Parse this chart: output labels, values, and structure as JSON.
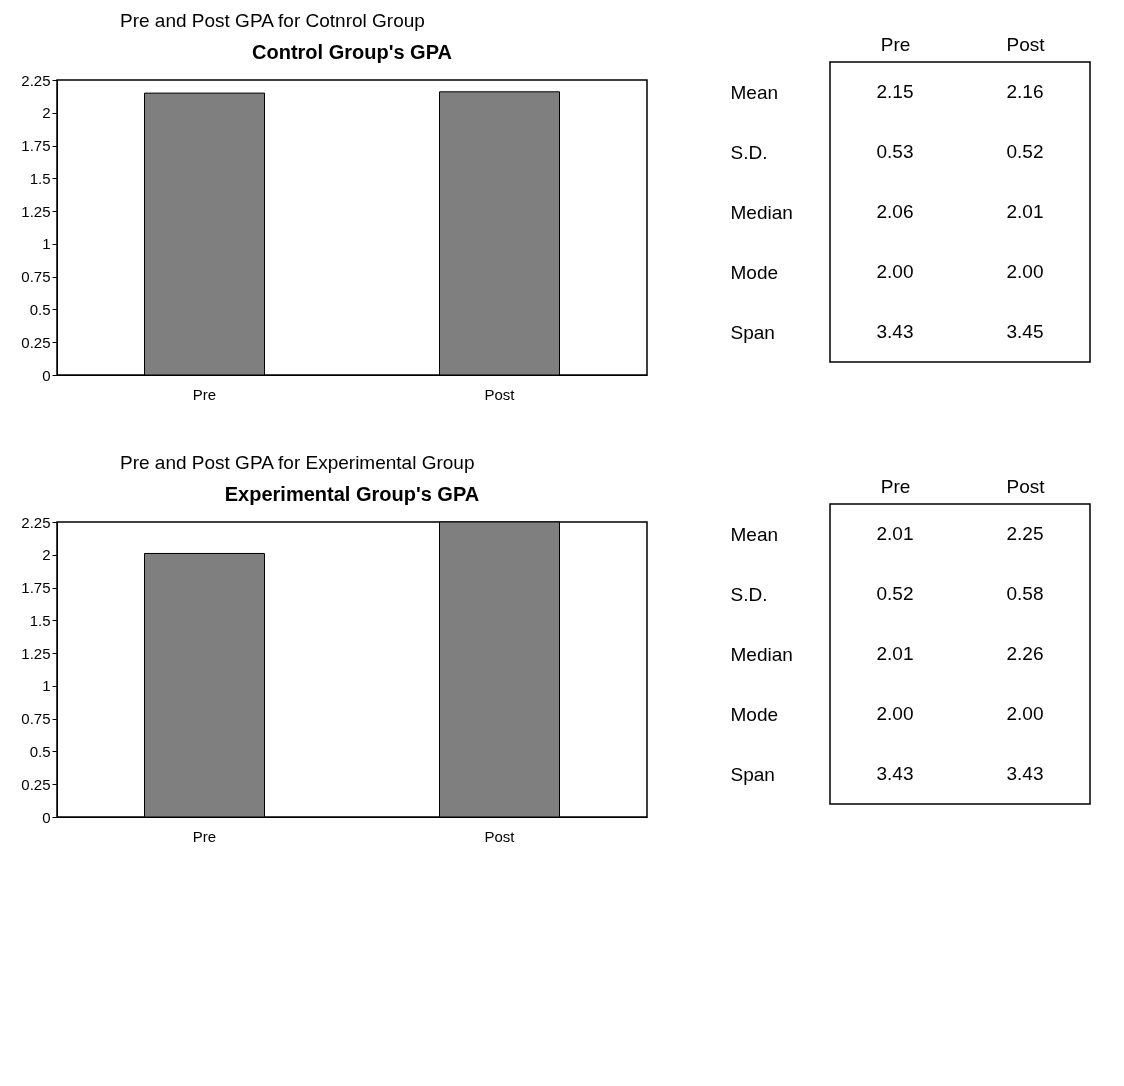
{
  "chart_data": [
    {
      "type": "bar",
      "title": "Control Group's GPA",
      "annotations": [
        "Pre and Post GPA for Cotnrol Group"
      ],
      "categories": [
        "Pre",
        "Post"
      ],
      "values": [
        2.15,
        2.16
      ],
      "color": "#7f7f7f",
      "ylim": [
        0,
        2.25
      ],
      "yticks": [
        0,
        0.25,
        0.5,
        0.75,
        1,
        1.25,
        1.5,
        1.75,
        2,
        2.25
      ],
      "grid": false,
      "legend": false
    },
    {
      "type": "other",
      "categories": [
        "Pre",
        "Post"
      ],
      "y_categories": [
        "Mean",
        "S.D.",
        "Median",
        "Mode",
        "Span"
      ],
      "cell_labels": [
        [
          "2.15",
          "2.16"
        ],
        [
          "0.53",
          "0.52"
        ],
        [
          "2.06",
          "2.01"
        ],
        [
          "2.00",
          "2.00"
        ],
        [
          "3.43",
          "3.45"
        ]
      ]
    },
    {
      "type": "bar",
      "title": "Experimental Group's GPA",
      "annotations": [
        "Pre and Post GPA for Experimental Group"
      ],
      "categories": [
        "Pre",
        "Post"
      ],
      "values": [
        2.01,
        2.25
      ],
      "color": "#7f7f7f",
      "ylim": [
        0,
        2.25
      ],
      "yticks": [
        0,
        0.25,
        0.5,
        0.75,
        1,
        1.25,
        1.5,
        1.75,
        2,
        2.25
      ],
      "grid": false,
      "legend": false
    },
    {
      "type": "other",
      "categories": [
        "Pre",
        "Post"
      ],
      "y_categories": [
        "Mean",
        "S.D.",
        "Median",
        "Mode",
        "Span"
      ],
      "cell_labels": [
        [
          "2.01",
          "2.25"
        ],
        [
          "0.52",
          "0.58"
        ],
        [
          "2.01",
          "2.26"
        ],
        [
          "2.00",
          "2.00"
        ],
        [
          "3.43",
          "3.43"
        ]
      ]
    }
  ]
}
